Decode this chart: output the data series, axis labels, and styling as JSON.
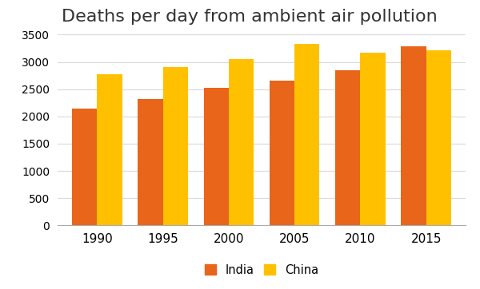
{
  "title": "Deaths per day from ambient air pollution",
  "years": [
    1990,
    1995,
    2000,
    2005,
    2010,
    2015
  ],
  "india": [
    2140,
    2320,
    2530,
    2650,
    2850,
    3280
  ],
  "china": [
    2780,
    2900,
    3050,
    3330,
    3170,
    3220
  ],
  "india_color": "#E8651A",
  "china_color": "#FFC000",
  "ylim": [
    0,
    3500
  ],
  "yticks": [
    0,
    500,
    1000,
    1500,
    2000,
    2500,
    3000,
    3500
  ],
  "bar_width": 0.38,
  "background_color": "#ffffff",
  "title_fontsize": 16,
  "legend_labels": [
    "India",
    "China"
  ],
  "grid_color": "#d9d9d9"
}
